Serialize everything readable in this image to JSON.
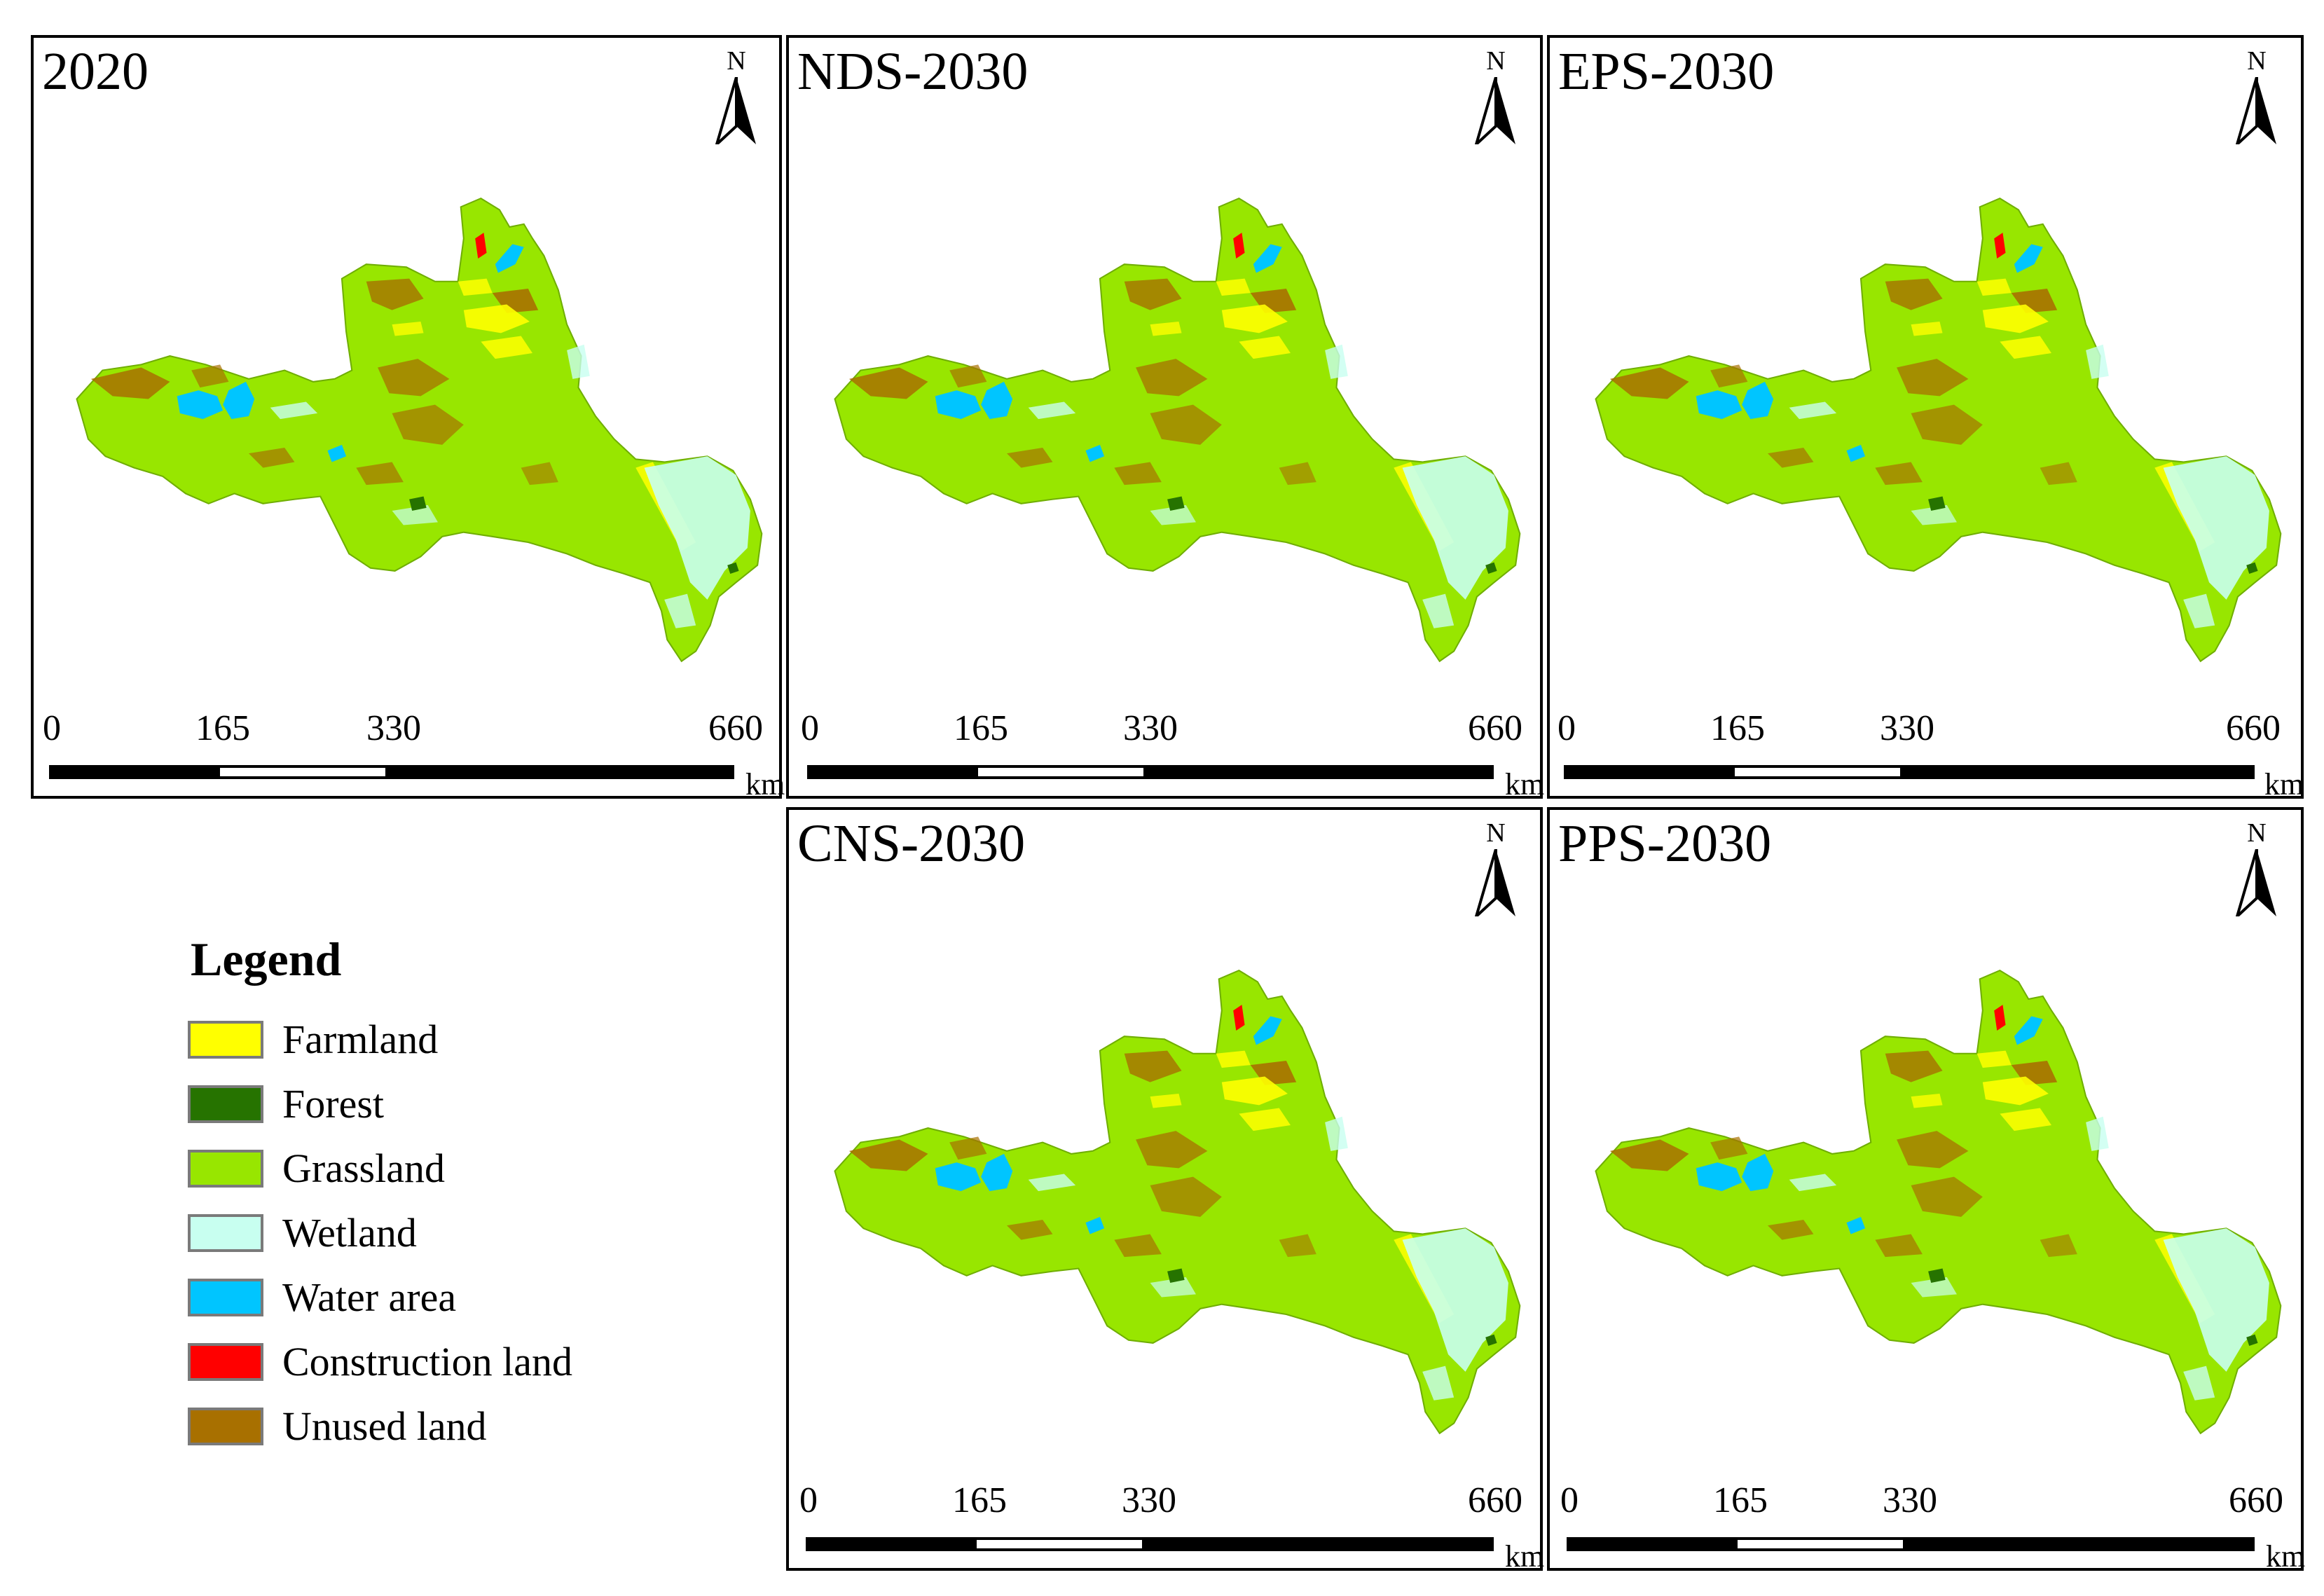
{
  "panels": [
    {
      "title": "2020"
    },
    {
      "title": "NDS-2030"
    },
    {
      "title": "EPS-2030"
    },
    {
      "title": "CNS-2030"
    },
    {
      "title": "PPS-2030"
    }
  ],
  "north_arrow": {
    "label": "N"
  },
  "scale_bar": {
    "ticks": [
      "0",
      "165",
      "330",
      "660"
    ],
    "unit": "km"
  },
  "legend": {
    "title": "Legend",
    "items": [
      {
        "label": "Farmland",
        "color": "#ffff00"
      },
      {
        "label": "Forest",
        "color": "#267300"
      },
      {
        "label": "Grassland",
        "color": "#98e600"
      },
      {
        "label": "Wetland",
        "color": "#c8fff0"
      },
      {
        "label": "Water area",
        "color": "#00c5ff"
      },
      {
        "label": "Construction land",
        "color": "#ff0000"
      },
      {
        "label": "Unused land",
        "color": "#a87000"
      }
    ]
  }
}
